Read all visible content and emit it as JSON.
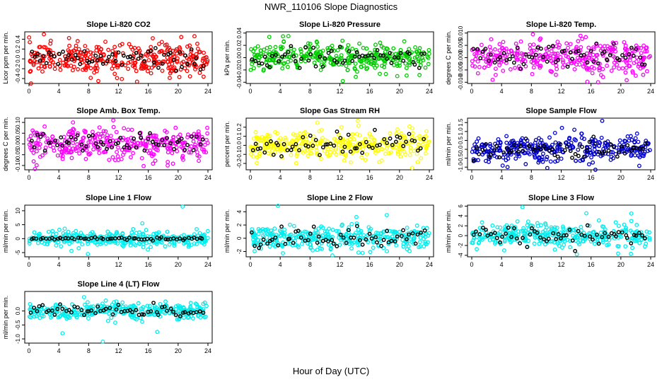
{
  "figure": {
    "title": "NWR_110106  Slope Diagnostics",
    "xlabel": "Hour of Day (UTC)"
  },
  "chart_data": [
    {
      "type": "scatter",
      "title": "Slope Li-820 CO2",
      "ylabel": "Licor ppm per min.",
      "color": "#ff0000",
      "xlim": [
        0,
        24
      ],
      "ylim": [
        -0.5,
        0.55
      ],
      "xticks": [
        0,
        4,
        8,
        12,
        16,
        20,
        24
      ],
      "yticks": [
        -0.4,
        -0.2,
        0.0,
        0.2,
        0.4
      ],
      "ytick_labels": [
        "-0.4",
        "-0.2",
        "0.0",
        "0.2",
        "0.4"
      ],
      "spread": 0.16,
      "black_spread": 0.1,
      "outliers": [
        0.5,
        -0.45,
        0.42
      ]
    },
    {
      "type": "scatter",
      "title": "Slope Li-820 Pressure",
      "ylabel": "kPa per min.",
      "color": "#00cc00",
      "xlim": [
        0,
        24
      ],
      "ylim": [
        -0.042,
        0.042
      ],
      "xticks": [
        0,
        4,
        8,
        12,
        16,
        20,
        24
      ],
      "yticks": [
        -0.04,
        -0.02,
        0.0,
        0.02,
        0.04
      ],
      "ytick_labels": [
        "-0.04",
        "-0.02",
        "0.00",
        "0.02",
        "0.04"
      ],
      "spread": 0.011,
      "black_spread": 0.008,
      "outliers": [
        0.035,
        -0.038,
        -0.03
      ]
    },
    {
      "type": "scatter",
      "title": "Slope Li-820 Temp.",
      "ylabel": "degrees C per min.",
      "color": "#ff00ff",
      "xlim": [
        0,
        24
      ],
      "ylim": [
        -0.0105,
        0.0105
      ],
      "xticks": [
        0,
        4,
        8,
        12,
        16,
        20,
        24
      ],
      "yticks": [
        -0.01,
        -0.005,
        0.0,
        0.005,
        0.01
      ],
      "ytick_labels": [
        "-0.010",
        "-0.005",
        "0.000",
        "0.005",
        "0.010"
      ],
      "spread": 0.0035,
      "black_spread": 0.0025,
      "outliers": [
        0.0095,
        -0.0098,
        -0.009
      ]
    },
    {
      "type": "scatter",
      "title": "Slope Amb. Box Temp.",
      "ylabel": "degrees C per min.",
      "color": "#ff00ff",
      "xlim": [
        0,
        24
      ],
      "ylim": [
        -0.12,
        0.12
      ],
      "xticks": [
        0,
        4,
        8,
        12,
        16,
        20,
        24
      ],
      "yticks": [
        -0.1,
        -0.05,
        0.0,
        0.05,
        0.1
      ],
      "ytick_labels": [
        "-0.10",
        "-0.05",
        "0.00",
        "0.05",
        "0.10"
      ],
      "spread": 0.035,
      "black_spread": 0.025,
      "outliers": [
        0.11,
        -0.1,
        0.1
      ]
    },
    {
      "type": "scatter",
      "title": "Slope Gas Stream RH",
      "ylabel": "percent per min.",
      "color": "#ffff00",
      "xlim": [
        0,
        24
      ],
      "ylim": [
        -0.27,
        0.3
      ],
      "xticks": [
        0,
        4,
        8,
        12,
        16,
        20,
        24
      ],
      "yticks": [
        -0.2,
        -0.1,
        0.0,
        0.1,
        0.2
      ],
      "ytick_labels": [
        "-0.2",
        "-0.1",
        "0.0",
        "0.1",
        "0.2"
      ],
      "spread": 0.08,
      "black_spread": 0.07,
      "outliers": [
        0.27,
        -0.25,
        0.25
      ]
    },
    {
      "type": "scatter",
      "title": "Slope Sample Flow",
      "ylabel": "ml/min per min.",
      "color": "#0000cc",
      "xlim": [
        0,
        24
      ],
      "ylim": [
        -1.15,
        1.75
      ],
      "xticks": [
        0,
        4,
        8,
        12,
        16,
        20,
        24
      ],
      "yticks": [
        -1.0,
        -0.5,
        0.0,
        0.5,
        1.0,
        1.5
      ],
      "ytick_labels": [
        "-1.0",
        "-0.5",
        "0.0",
        "0.5",
        "1.0",
        "1.5"
      ],
      "spread": 0.35,
      "black_spread": 0.25,
      "outliers": [
        1.6,
        -1.0,
        1.2
      ]
    },
    {
      "type": "scatter",
      "title": "Slope Line 1 Flow",
      "ylabel": "ml/min per min.",
      "color": "#00eeee",
      "xlim": [
        0,
        24
      ],
      "ylim": [
        -6.5,
        12
      ],
      "xticks": [
        0,
        4,
        8,
        12,
        16,
        20,
        24
      ],
      "yticks": [
        -5,
        0,
        5,
        10
      ],
      "ytick_labels": [
        "-5",
        "0",
        "5",
        "10"
      ],
      "spread": 1.3,
      "black_spread": 0.25,
      "outliers": [
        11.5,
        -5.5,
        5.5
      ]
    },
    {
      "type": "scatter",
      "title": "Slope Line 2 Flow",
      "ylabel": "ml/min per min.",
      "color": "#00eeee",
      "xlim": [
        0,
        24
      ],
      "ylim": [
        -2.8,
        5
      ],
      "xticks": [
        0,
        4,
        8,
        12,
        16,
        20,
        24
      ],
      "yticks": [
        -2,
        0,
        2,
        4
      ],
      "ytick_labels": [
        "-2",
        "0",
        "2",
        "4"
      ],
      "spread": 0.9,
      "black_spread": 0.8,
      "outliers": [
        4.9,
        -2.6,
        3.5
      ]
    },
    {
      "type": "scatter",
      "title": "Slope Line 3 Flow",
      "ylabel": "ml/min per min.",
      "color": "#00eeee",
      "xlim": [
        0,
        24
      ],
      "ylim": [
        -4.3,
        6.2
      ],
      "xticks": [
        0,
        4,
        8,
        12,
        16,
        20,
        24
      ],
      "yticks": [
        -4,
        -2,
        0,
        2,
        4,
        6
      ],
      "ytick_labels": [
        "-4",
        "-2",
        "0",
        "2",
        "4",
        "6"
      ],
      "spread": 1.2,
      "black_spread": 1.0,
      "outliers": [
        5.8,
        -3.8,
        4.5
      ]
    },
    {
      "type": "scatter",
      "title": "Slope Line 4 (LT) Flow",
      "ylabel": "ml/min per min.",
      "color": "#00eeee",
      "xlim": [
        0,
        24
      ],
      "ylim": [
        -1.15,
        0.7
      ],
      "xticks": [
        0,
        4,
        8,
        12,
        16,
        20,
        24
      ],
      "yticks": [
        -1.0,
        -0.5,
        0.0
      ],
      "ytick_labels": [
        "-1.0",
        "-0.5",
        "0.0"
      ],
      "spread": 0.15,
      "black_spread": 0.12,
      "outliers": [
        -1.1,
        -0.75,
        -0.8
      ]
    }
  ]
}
